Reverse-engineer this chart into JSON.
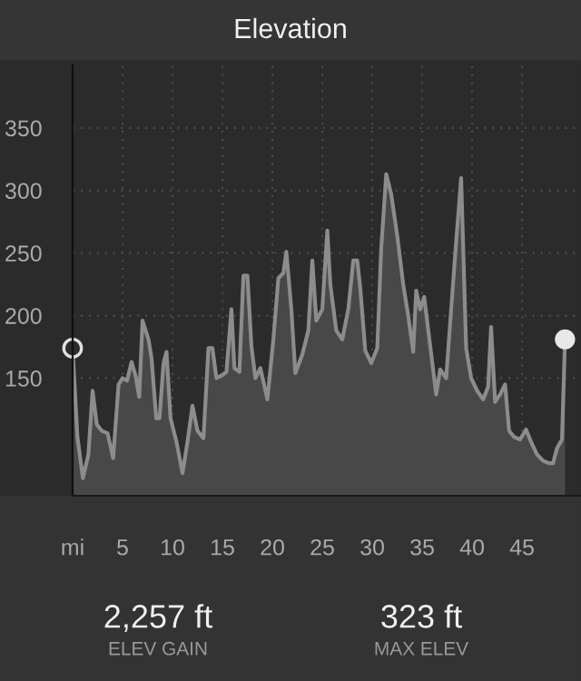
{
  "chart_data": {
    "type": "area",
    "title": "Elevation",
    "x": [
      0,
      0.48,
      1.03,
      1.58,
      2.0,
      2.42,
      2.9,
      3.5,
      4.06,
      4.6,
      5.0,
      5.45,
      5.9,
      6.3,
      6.67,
      7.0,
      7.6,
      7.9,
      8.37,
      8.7,
      9.1,
      9.4,
      9.8,
      10.4,
      11.0,
      11.5,
      12.0,
      12.5,
      13.1,
      13.6,
      14.0,
      14.4,
      14.9,
      15.4,
      15.9,
      16.2,
      16.7,
      17.1,
      17.5,
      17.9,
      18.3,
      18.8,
      19.5,
      20.1,
      20.6,
      21.1,
      21.4,
      21.9,
      22.3,
      23.0,
      23.6,
      24.0,
      24.4,
      25.0,
      25.5,
      25.8,
      26.4,
      27.0,
      27.6,
      28.1,
      28.5,
      28.8,
      29.3,
      29.9,
      30.5,
      30.9,
      31.4,
      31.9,
      32.5,
      33.1,
      33.6,
      34.1,
      34.4,
      34.8,
      35.2,
      35.8,
      36.4,
      36.8,
      37.4,
      37.9,
      38.4,
      38.9,
      39.4,
      39.9,
      40.5,
      41.1,
      41.6,
      41.9,
      42.3,
      42.8,
      43.3,
      43.7,
      44.2,
      44.8,
      45.4,
      45.9,
      46.5,
      47.1,
      47.7,
      48.1,
      48.5,
      49.0,
      49.3
    ],
    "series": [
      {
        "color": "#8c8c8c",
        "values": [
          174,
          103,
          70,
          89,
          140,
          113,
          108,
          106,
          86,
          145,
          150,
          148,
          163,
          152,
          135,
          196,
          181,
          166,
          118,
          118,
          162,
          171,
          118,
          99,
          74,
          99,
          128,
          108,
          102,
          174,
          174,
          150,
          152,
          155,
          205,
          158,
          155,
          232,
          232,
          176,
          150,
          158,
          133,
          181,
          230,
          234,
          251,
          205,
          154,
          169,
          188,
          244,
          196,
          205,
          268,
          225,
          188,
          181,
          205,
          244,
          244,
          222,
          172,
          162,
          174,
          254,
          313,
          297,
          264,
          225,
          200,
          171,
          220,
          205,
          215,
          176,
          137,
          157,
          150,
          205,
          259,
          310,
          174,
          150,
          140,
          133,
          143,
          191,
          131,
          137,
          145,
          108,
          103,
          101,
          109,
          99,
          89,
          84,
          82,
          82,
          94,
          101,
          181
        ]
      }
    ],
    "xlim": [
      0,
      50.9
    ],
    "ylim": [
      56,
      400
    ],
    "xticks": [
      {
        "value": 0,
        "label": "mi"
      },
      5,
      10,
      15,
      20,
      25,
      30,
      35,
      40,
      45
    ],
    "yticks": [
      150,
      200,
      250,
      300,
      350
    ],
    "grid": true,
    "annotations": [
      "2,257 ft",
      "ELEV GAIN",
      "323 ft",
      "MAX ELEV"
    ]
  }
}
